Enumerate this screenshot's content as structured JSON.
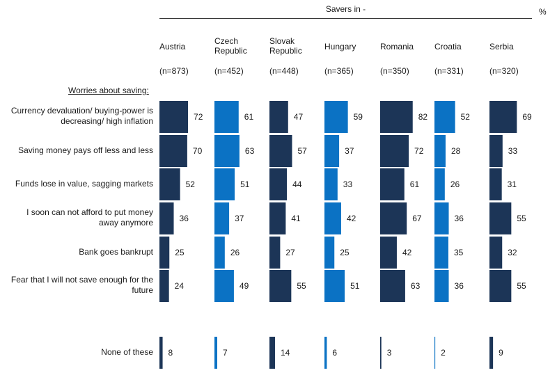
{
  "chart_data": {
    "type": "bar",
    "title": "Savers in -",
    "unit": "%",
    "section_label": "Worries about saving:",
    "groups": [
      {
        "name": "Austria",
        "n": "(n=873)",
        "color": "#1c3557"
      },
      {
        "name": "Czech Republic",
        "n": "(n=452)",
        "color": "#0b72c4"
      },
      {
        "name": "Slovak Republic",
        "n": "(n=448)",
        "color": "#1c3557"
      },
      {
        "name": "Hungary",
        "n": "(n=365)",
        "color": "#0b72c4"
      },
      {
        "name": "Romania",
        "n": "(n=350)",
        "color": "#1c3557"
      },
      {
        "name": "Croatia",
        "n": "(n=331)",
        "color": "#0b72c4"
      },
      {
        "name": "Serbia",
        "n": "(n=320)",
        "color": "#1c3557"
      }
    ],
    "categories": [
      "Currency devaluation/ buying-power is decreasing/ high inflation",
      "Saving money pays off less and less",
      "Funds lose in value, sagging markets",
      "I soon can not afford to put money away anymore",
      "Bank goes bankrupt",
      "Fear that I will not save enough for the future",
      "None of these"
    ],
    "values": [
      [
        72,
        61,
        47,
        59,
        82,
        52,
        69
      ],
      [
        70,
        63,
        57,
        37,
        72,
        28,
        33
      ],
      [
        52,
        51,
        44,
        33,
        61,
        26,
        31
      ],
      [
        36,
        37,
        41,
        42,
        67,
        36,
        55
      ],
      [
        25,
        26,
        27,
        25,
        42,
        35,
        32
      ],
      [
        24,
        49,
        55,
        51,
        63,
        36,
        55
      ],
      [
        8,
        7,
        14,
        6,
        3,
        2,
        9
      ]
    ]
  }
}
